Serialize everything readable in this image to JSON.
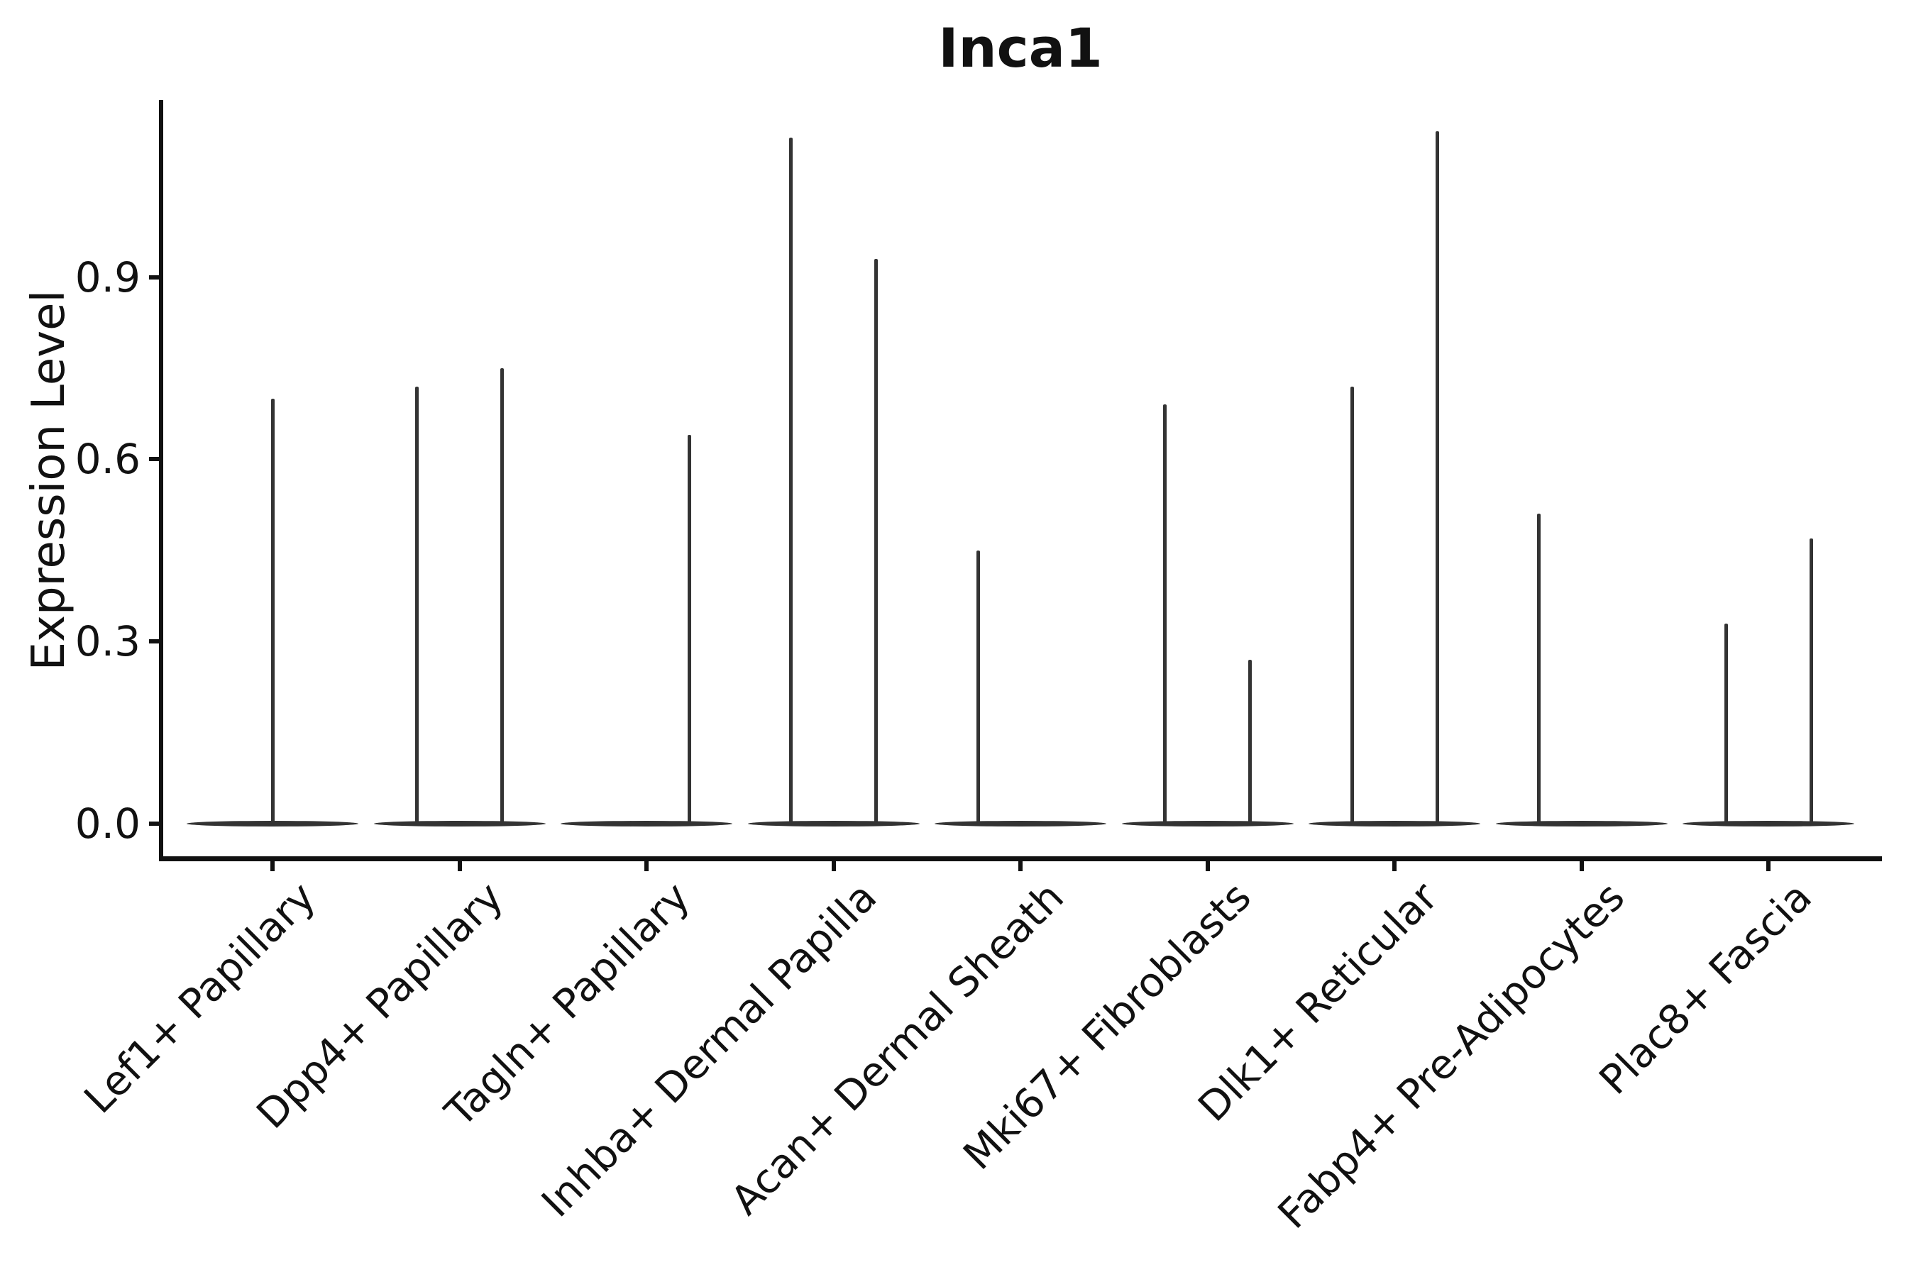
{
  "title": "Inca1",
  "chart_data": {
    "type": "violin",
    "title": "Inca1",
    "xlabel": "",
    "ylabel": "Expression Level",
    "legend": "none",
    "grid": "off",
    "background": "#ffffff",
    "colors": {
      "axis": "#111111",
      "text": "#111111",
      "violin_stroke": "#333333"
    },
    "ylim": [
      -0.06,
      1.19
    ],
    "y_ticks": [
      "0.0",
      "0.3",
      "0.6",
      "0.9"
    ],
    "y_tick_values": [
      0.0,
      0.3,
      0.6,
      0.9
    ],
    "categories": [
      "Lef1+ Papillary",
      "Dpp4+ Papillary",
      "Tagln+ Papillary",
      "Inhba+ Dermal Papilla",
      "Acan+ Dermal Sheath",
      "Mki67+ Fibroblasts",
      "Dlk1+ Reticular",
      "Fabp4+ Pre-Adipocytes",
      "Plac8+ Fascia"
    ],
    "note": "Each category shows needle-thin violins: bulk of cells at expression 0 (flat base bar) with a thin spike up to the max expressing cells. 'pos' is the spike position within the category slot (dodged sub-violin).",
    "violins": [
      {
        "category": "Lef1+ Papillary",
        "spikes": [
          {
            "pos": "center",
            "max": 0.7
          }
        ]
      },
      {
        "category": "Dpp4+ Papillary",
        "spikes": [
          {
            "pos": "left",
            "max": 0.72
          },
          {
            "pos": "right",
            "max": 0.75
          }
        ]
      },
      {
        "category": "Tagln+ Papillary",
        "spikes": [
          {
            "pos": "right",
            "max": 0.64
          }
        ]
      },
      {
        "category": "Inhba+ Dermal Papilla",
        "spikes": [
          {
            "pos": "left",
            "max": 1.13
          },
          {
            "pos": "right",
            "max": 0.93
          }
        ]
      },
      {
        "category": "Acan+ Dermal Sheath",
        "spikes": [
          {
            "pos": "left",
            "max": 0.45
          }
        ]
      },
      {
        "category": "Mki67+ Fibroblasts",
        "spikes": [
          {
            "pos": "left",
            "max": 0.69
          },
          {
            "pos": "right",
            "max": 0.27
          }
        ]
      },
      {
        "category": "Dlk1+ Reticular",
        "spikes": [
          {
            "pos": "left",
            "max": 0.72
          },
          {
            "pos": "right",
            "max": 1.14
          }
        ]
      },
      {
        "category": "Fabp4+ Pre-Adipocytes",
        "spikes": [
          {
            "pos": "left",
            "max": 0.51
          }
        ]
      },
      {
        "category": "Plac8+ Fascia",
        "spikes": [
          {
            "pos": "left",
            "max": 0.33
          },
          {
            "pos": "right",
            "max": 0.47
          }
        ]
      }
    ],
    "baseline_value": 0.0
  }
}
